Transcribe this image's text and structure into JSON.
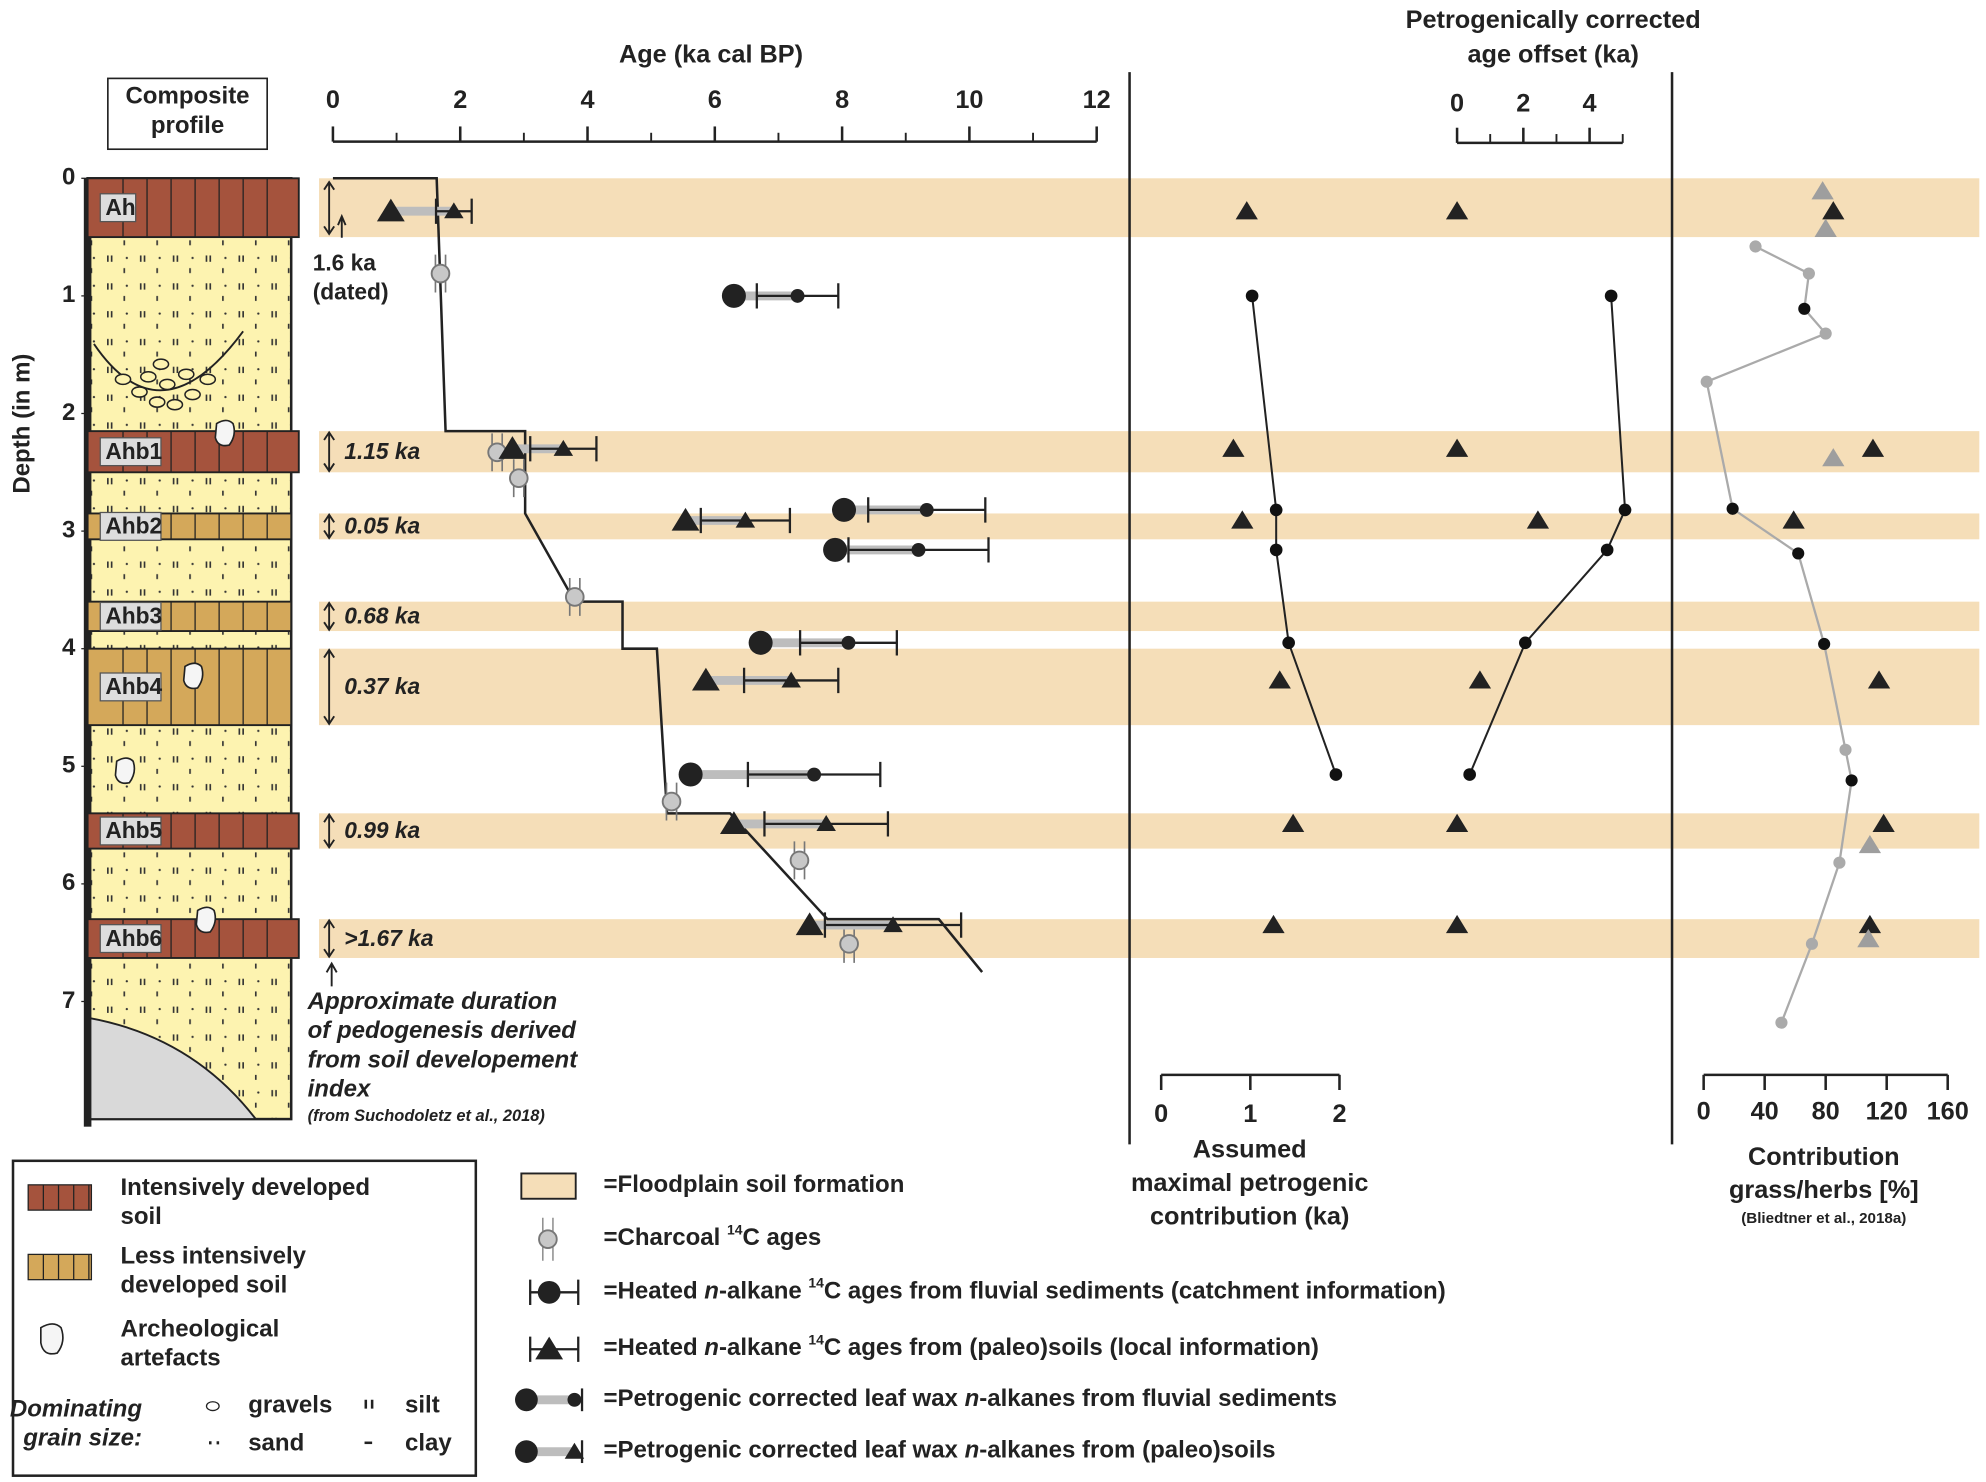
{
  "profile": {
    "title": [
      "Composite",
      "profile"
    ],
    "depth_label": "Depth (in m)",
    "depth_ticks": [
      0,
      1,
      2,
      3,
      4,
      5,
      6,
      7
    ],
    "dated_note": [
      "1.6 ka",
      "(dated)"
    ],
    "horizons": [
      {
        "name": "Ah",
        "top": 0,
        "bottom": 0.5,
        "kind": "intense"
      },
      {
        "name": "Ahb1",
        "top": 2.15,
        "bottom": 2.5,
        "kind": "intense",
        "duration": "1.15 ka"
      },
      {
        "name": "Ahb2",
        "top": 2.85,
        "bottom": 3.07,
        "kind": "less",
        "duration": "0.05 ka"
      },
      {
        "name": "Ahb3",
        "top": 3.6,
        "bottom": 3.85,
        "kind": "less",
        "duration": "0.68 ka"
      },
      {
        "name": "Ahb4",
        "top": 4.0,
        "bottom": 4.65,
        "kind": "less",
        "duration": "0.37 ka"
      },
      {
        "name": "Ahb5",
        "top": 5.4,
        "bottom": 5.7,
        "kind": "intense",
        "duration": "0.99 ka"
      },
      {
        "name": "Ahb6",
        "top": 6.3,
        "bottom": 6.63,
        "kind": "intense",
        "duration": ">1.67 ka"
      }
    ],
    "note": [
      "Approximate duration",
      "of pedogenesis derived",
      "from soil developement",
      "index"
    ],
    "note_source": "(from Suchodoletz et al., 2018)"
  },
  "age_panel": {
    "title": "Age (ka cal BP)",
    "xlim": [
      0,
      12
    ],
    "xticks": [
      0,
      2,
      4,
      6,
      8,
      10,
      12
    ],
    "minor_xticks": [
      1,
      3,
      5,
      7,
      9,
      11
    ],
    "age_model": {
      "age": [
        0,
        1.63,
        1.77,
        3.02,
        3.02,
        3.8,
        4.55,
        4.55,
        5.09,
        5.25,
        6.24,
        7.77,
        9.52,
        10.2
      ],
      "depth": [
        0,
        0,
        2.15,
        2.15,
        2.85,
        3.6,
        3.6,
        4.0,
        4.0,
        5.4,
        5.4,
        6.3,
        6.3,
        6.75
      ]
    },
    "charcoal": {
      "depth": [
        0.81,
        2.33,
        2.55,
        3.56,
        5.3,
        5.8,
        6.51
      ],
      "age": [
        1.69,
        2.58,
        2.92,
        3.8,
        5.32,
        7.33,
        8.11
      ]
    },
    "fluvial": {
      "depth": [
        1.0,
        2.82,
        3.16,
        3.95,
        5.07
      ],
      "corrected": [
        6.3,
        8.03,
        7.89,
        6.72,
        5.62
      ],
      "heated": [
        7.3,
        9.33,
        9.2,
        8.1,
        7.56
      ],
      "error": [
        0.64,
        0.92,
        1.1,
        0.76,
        1.04
      ]
    },
    "soil": {
      "depth": [
        0.28,
        2.3,
        2.91,
        4.27,
        5.49,
        6.35
      ],
      "corrected": [
        0.91,
        2.82,
        5.54,
        5.86,
        6.3,
        7.49
      ],
      "heated": [
        1.9,
        3.62,
        6.48,
        7.2,
        7.75,
        8.8
      ],
      "error": [
        0.28,
        0.52,
        0.7,
        0.74,
        0.97,
        1.07
      ]
    }
  },
  "petrogenic_panel": {
    "label": [
      "Assumed",
      "maximal petrogenic",
      "contribution (ka)"
    ],
    "xlim": [
      0,
      2
    ],
    "xticks": [
      0,
      1,
      2
    ],
    "fluvial": {
      "depth": [
        1.0,
        2.82,
        3.16,
        3.95,
        5.07
      ],
      "value": [
        1.02,
        1.29,
        1.29,
        1.43,
        1.96
      ]
    },
    "soil": {
      "depth": [
        0.28,
        2.3,
        2.91,
        4.27,
        5.49,
        6.35
      ],
      "value": [
        0.96,
        0.81,
        0.91,
        1.33,
        1.48,
        1.26
      ]
    }
  },
  "offset_panel": {
    "title": [
      "Petrogenically corrected",
      "age offset (ka)"
    ],
    "xlim": [
      0,
      5
    ],
    "xticks": [
      0,
      2,
      4
    ],
    "minor_xticks": [
      1,
      3,
      5
    ],
    "fluvial": {
      "depth": [
        1.0,
        2.82,
        3.16,
        3.95,
        5.07
      ],
      "value": [
        4.65,
        5.07,
        4.53,
        2.06,
        0.38
      ]
    },
    "soil": {
      "depth": [
        0.28,
        2.3,
        2.91,
        4.27,
        5.49,
        6.35
      ],
      "value": [
        0,
        0,
        2.44,
        0.69,
        0,
        0
      ]
    }
  },
  "grass_panel": {
    "label": [
      "Contribution",
      "grass/herbs [%]"
    ],
    "source": "(Bliedtner et al., 2018a)",
    "xlim": [
      0,
      160
    ],
    "xticks": [
      0,
      40,
      80,
      120,
      160
    ],
    "line": {
      "depth": [
        0.58,
        0.81,
        1.11,
        1.32,
        1.73,
        2.81,
        3.19,
        3.96,
        4.86,
        5.12,
        5.82,
        6.51,
        7.18
      ],
      "value": [
        34,
        69,
        66,
        80,
        2,
        19,
        62,
        79,
        93,
        97,
        89,
        71,
        51
      ],
      "color": [
        "#aaaaaa",
        "#aaaaaa",
        "#111111",
        "#aaaaaa",
        "#aaaaaa",
        "#111111",
        "#111111",
        "#111111",
        "#aaaaaa",
        "#111111",
        "#aaaaaa",
        "#aaaaaa",
        "#aaaaaa"
      ]
    },
    "triangles": {
      "depth": [
        0.28,
        2.3,
        2.91,
        4.27,
        5.49,
        6.35
      ],
      "value": [
        85,
        111,
        59,
        115,
        118,
        109
      ],
      "color": "#222222"
    },
    "gray_triangles": {
      "depth": [
        0.11,
        0.43,
        2.38,
        5.67,
        6.47
      ],
      "value": [
        78,
        80,
        85,
        109,
        108
      ],
      "color": "#9e9e9e"
    }
  },
  "legend_left": {
    "intense": [
      "Intensively developed",
      "soil"
    ],
    "less": [
      "Less intensively",
      "developed soil"
    ],
    "artefacts": [
      "Archeological",
      "artefacts"
    ],
    "grain": [
      "Dominating",
      "grain size:"
    ],
    "gravels": "gravels",
    "silt": "silt",
    "sand": "sand",
    "clay": "clay"
  },
  "legend_right": [
    [
      "=Floodplain soil formation"
    ],
    [
      "=Charcoal ",
      "14",
      "C ages"
    ],
    [
      "=Heated ",
      "n",
      "-alkane ",
      "14",
      "C ages from fluvial sediments (catchment information)"
    ],
    [
      "=Heated ",
      "n",
      "-alkane ",
      "14",
      "C ages from (paleo)soils (local information)"
    ],
    [
      "=Petrogenic corrected leaf wax ",
      "n",
      "-alkanes from fluvial sediments"
    ],
    [
      "=Petrogenic corrected leaf wax ",
      "n",
      "-alkanes from (paleo)soils"
    ]
  ]
}
